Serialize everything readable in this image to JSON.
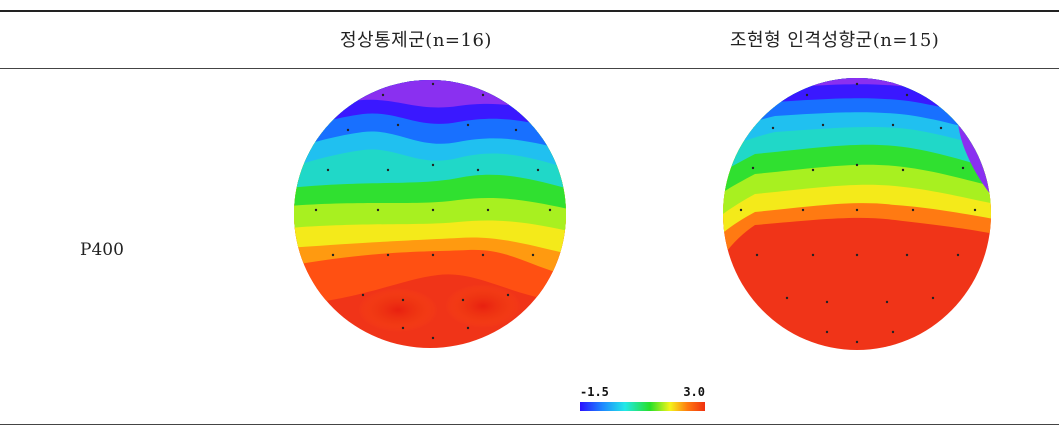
{
  "table": {
    "columns": [
      "",
      "정상통제군(n=16)",
      "조현형 인격성향군(n=15)"
    ],
    "rows": [
      {
        "label": "P400"
      }
    ]
  },
  "colorbar": {
    "min_label": "-1.5",
    "max_label": "3.0",
    "colors": [
      "#2a10ff",
      "#1e88ff",
      "#22e8e8",
      "#28e028",
      "#f4f41a",
      "#ff7a10",
      "#f03010"
    ]
  }
}
